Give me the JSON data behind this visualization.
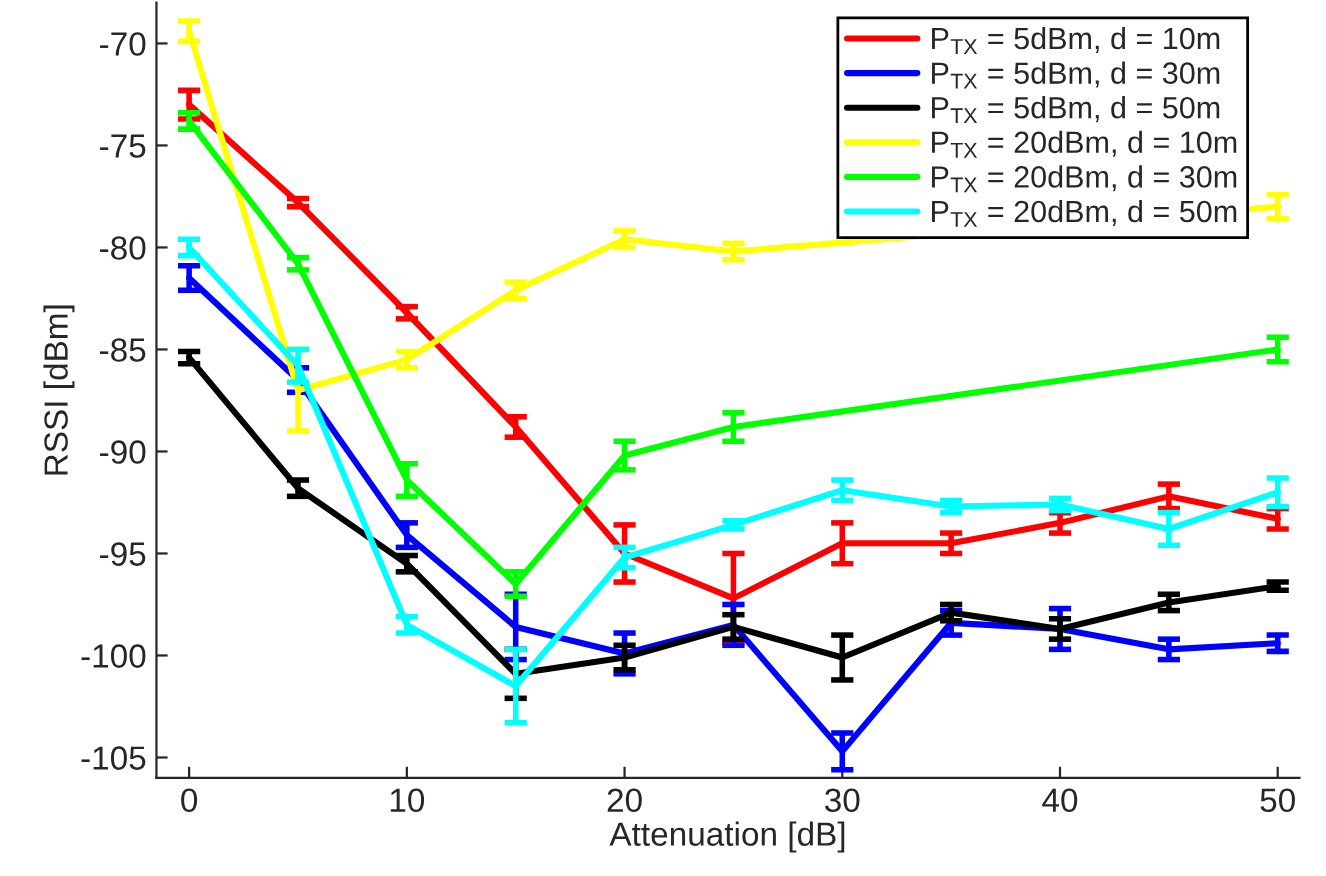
{
  "chart_data": {
    "type": "line",
    "xlabel": "Attenuation [dB]",
    "ylabel": "RSSI [dBm]",
    "x": [
      0,
      5,
      10,
      15,
      20,
      25,
      30,
      35,
      40,
      45,
      50
    ],
    "series": [
      {
        "name": "P$_{TX}$ = 5dBm, d = 10m",
        "color": "#ff0000",
        "values": [
          -73,
          -77.8,
          -83.2,
          -88.8,
          -95,
          -97.2,
          -94.5,
          -94.5,
          -93.5,
          -92.2,
          -93.3
        ],
        "errors": [
          0.7,
          0.2,
          0.3,
          0.5,
          1.4,
          2.2,
          1.0,
          0.5,
          0.5,
          0.6,
          0.5
        ]
      },
      {
        "name": "P$_{TX}$ = 5dBm, d = 30m",
        "color": "#0000ff",
        "values": [
          -81.5,
          -86.5,
          -94.1,
          -98.6,
          -99.9,
          -98.5,
          -104.7,
          -98.4,
          -98.7,
          -99.7,
          -99.4
        ],
        "errors": [
          0.6,
          0.6,
          0.6,
          1.6,
          1.0,
          1.0,
          0.9,
          0.6,
          1.0,
          0.5,
          0.4
        ]
      },
      {
        "name": "P$_{TX}$ = 5dBm, d = 50m",
        "color": "#000000",
        "values": [
          -85.4,
          -91.8,
          -95.5,
          -100.9,
          -100.1,
          -98.6,
          -100.1,
          -97.9,
          -98.7,
          -97.4,
          -96.6
        ],
        "errors": [
          0.3,
          0.4,
          0.4,
          1.2,
          0.6,
          0.6,
          1.1,
          0.4,
          0.5,
          0.4,
          0.2
        ]
      },
      {
        "name": "P$_{TX}$ = 20dBm, d = 10m",
        "color": "#ffff00",
        "values": [
          -69.4,
          -87,
          -85.5,
          -82.1,
          -79.6,
          -80.2,
          null,
          null,
          null,
          null,
          -78
        ],
        "errors": [
          0.5,
          2.0,
          0.4,
          0.4,
          0.4,
          0.4,
          null,
          null,
          null,
          null,
          0.6
        ]
      },
      {
        "name": "P$_{TX}$ = 20dBm, d = 30m",
        "color": "#00ff00",
        "values": [
          -73.8,
          -80.8,
          -91.4,
          -96.5,
          -90.2,
          -88.8,
          null,
          null,
          null,
          null,
          -85
        ],
        "errors": [
          0.4,
          0.3,
          0.8,
          0.6,
          0.7,
          0.7,
          null,
          null,
          null,
          null,
          0.6
        ]
      },
      {
        "name": "P$_{TX}$ = 20dBm, d = 50m",
        "color": "#00ffff",
        "values": [
          -80,
          -85.8,
          -98.5,
          -101.5,
          -95.2,
          -93.6,
          -91.9,
          -92.7,
          -92.6,
          -93.8,
          -92
        ],
        "errors": [
          0.4,
          0.8,
          0.4,
          1.8,
          0.5,
          0.2,
          0.5,
          0.3,
          0.3,
          0.8,
          0.7
        ]
      }
    ],
    "xlim": [
      -1.5,
      51
    ],
    "ylim": [
      -106,
      -68
    ],
    "xticks": [
      0,
      10,
      20,
      30,
      40,
      50
    ],
    "yticks": [
      -105,
      -100,
      -95,
      -90,
      -85,
      -80,
      -75,
      -70
    ],
    "grid": false,
    "legend": "top right",
    "marker": "none",
    "line_style": "solid"
  }
}
